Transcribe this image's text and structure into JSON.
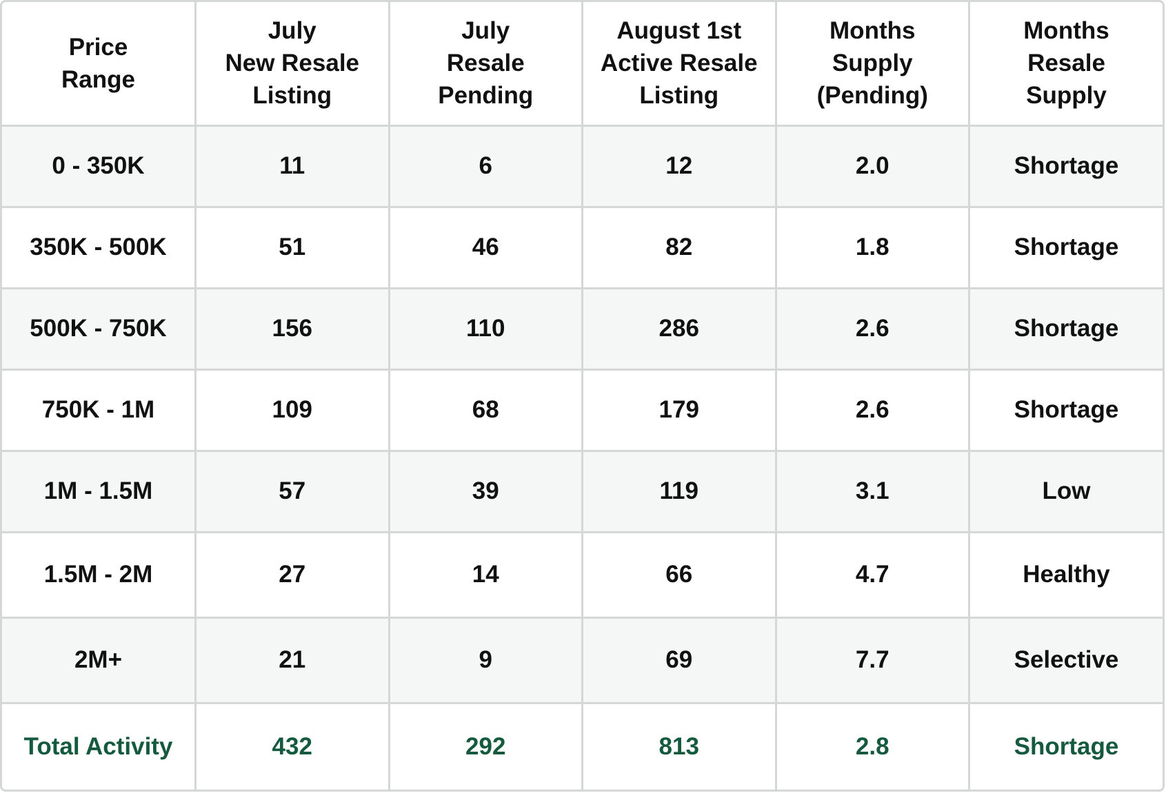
{
  "table": {
    "headers": [
      [
        "Price",
        "Range"
      ],
      [
        "July",
        "New Resale",
        "Listing"
      ],
      [
        "July",
        "Resale",
        "Pending"
      ],
      [
        "August 1st",
        "Active Resale",
        "Listing"
      ],
      [
        "Months",
        "Supply",
        "(Pending)"
      ],
      [
        "Months",
        "Resale",
        "Supply"
      ]
    ],
    "rows": [
      [
        "0 - 350K",
        "11",
        "6",
        "12",
        "2.0",
        "Shortage"
      ],
      [
        "350K - 500K",
        "51",
        "46",
        "82",
        "1.8",
        "Shortage"
      ],
      [
        "500K - 750K",
        "156",
        "110",
        "286",
        "2.6",
        "Shortage"
      ],
      [
        "750K - 1M",
        "109",
        "68",
        "179",
        "2.6",
        "Shortage"
      ],
      [
        "1M - 1.5M",
        "57",
        "39",
        "119",
        "3.1",
        "Low"
      ],
      [
        "1.5M - 2M",
        "27",
        "14",
        "66",
        "4.7",
        "Healthy"
      ],
      [
        "2M+",
        "21",
        "9",
        "69",
        "7.7",
        "Selective"
      ]
    ],
    "total": [
      "Total Activity",
      "432",
      "292",
      "813",
      "2.8",
      "Shortage"
    ]
  },
  "colors": {
    "border": "#d5d7d6",
    "row_shade": "#f5f7f6",
    "text": "#111111",
    "total_text": "#155a3e"
  }
}
